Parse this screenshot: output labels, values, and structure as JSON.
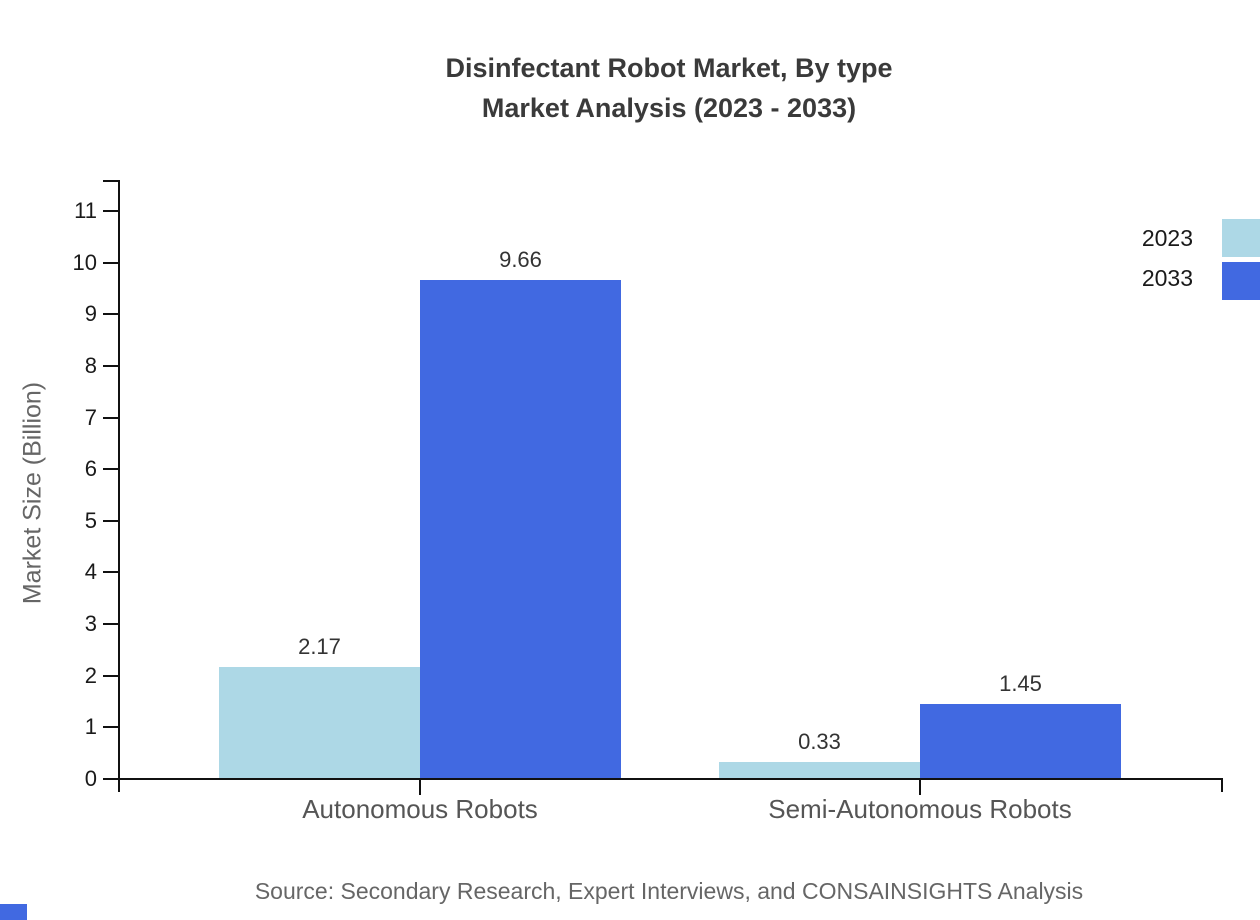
{
  "title": {
    "line1": "Disinfectant Robot Market, By type",
    "line2": "Market Analysis (2023 - 2033)"
  },
  "source": "Source: Secondary Research, Expert Interviews, and CONSAINSIGHTS Analysis",
  "legend": {
    "position": "top-right",
    "items": [
      {
        "label": "2023",
        "color": "#ADD8E6"
      },
      {
        "label": "2033",
        "color": "#4169E1"
      }
    ]
  },
  "colors": {
    "series_2023": "#ADD8E6",
    "series_2033": "#4169E1",
    "title_text": "#3a3a3a",
    "tick_text": "#1a1a1a",
    "value_text": "#333333",
    "category_text": "#555555",
    "muted_text": "#666666",
    "axis_line": "#111111",
    "corner_mark": "#4169E1"
  },
  "chart_data": {
    "type": "bar",
    "title": "Disinfectant Robot Market, By type Market Analysis (2023 - 2033)",
    "categories": [
      "Autonomous Robots",
      "Semi-Autonomous Robots"
    ],
    "series": [
      {
        "name": "2023",
        "values": [
          2.17,
          0.33
        ]
      },
      {
        "name": "2033",
        "values": [
          9.66,
          1.45
        ]
      }
    ],
    "value_labels": [
      "2.17",
      "9.66",
      "0.33",
      "1.45"
    ],
    "xlabel": "",
    "ylabel": "Market Size (Billion)",
    "ylim": [
      0,
      11
    ],
    "yticks": [
      0,
      1,
      2,
      3,
      4,
      5,
      6,
      7,
      8,
      9,
      10,
      11
    ],
    "grid": false,
    "legend_position": "top-right"
  }
}
